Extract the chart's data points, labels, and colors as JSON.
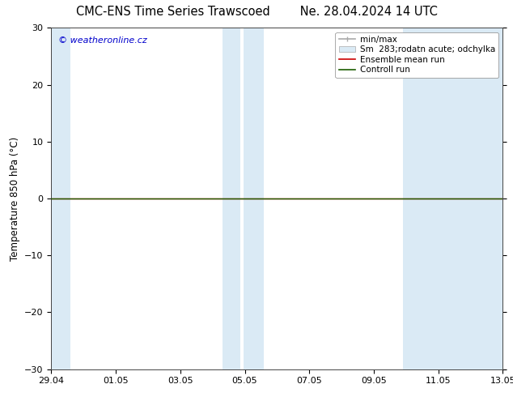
{
  "title": "CMC-ENS Time Series Trawscoed",
  "title_date": "Ne. 28.04.2024 14 UTC",
  "ylabel": "Temperature 850 hPa (°C)",
  "ylim": [
    -30,
    30
  ],
  "yticks": [
    -30,
    -20,
    -10,
    0,
    10,
    20,
    30
  ],
  "x_tick_labels": [
    "29.04",
    "01.05",
    "03.05",
    "05.05",
    "07.05",
    "09.05",
    "11.05",
    "13.05"
  ],
  "x_tick_positions": [
    0,
    2,
    4,
    6,
    8,
    10,
    12,
    14
  ],
  "xlim": [
    0,
    14
  ],
  "blue_bands": [
    [
      -0.2,
      0.6
    ],
    [
      5.3,
      5.85
    ],
    [
      5.95,
      6.6
    ],
    [
      10.9,
      14.2
    ]
  ],
  "control_run_y": 0,
  "watermark": "© weatheronline.cz",
  "legend_labels": [
    "min/max",
    "Sm  283;rodatn acute; odchylka",
    "Ensemble mean run",
    "Controll run"
  ],
  "background_color": "#ffffff",
  "band_color": "#daeaf5",
  "control_run_color": "#1a5c00",
  "ensemble_mean_color": "#cc0000",
  "minmax_color": "#aaaaaa",
  "title_fontsize": 10.5,
  "axis_fontsize": 8.5,
  "tick_fontsize": 8,
  "legend_fontsize": 7.5,
  "watermark_color": "#0000cc"
}
